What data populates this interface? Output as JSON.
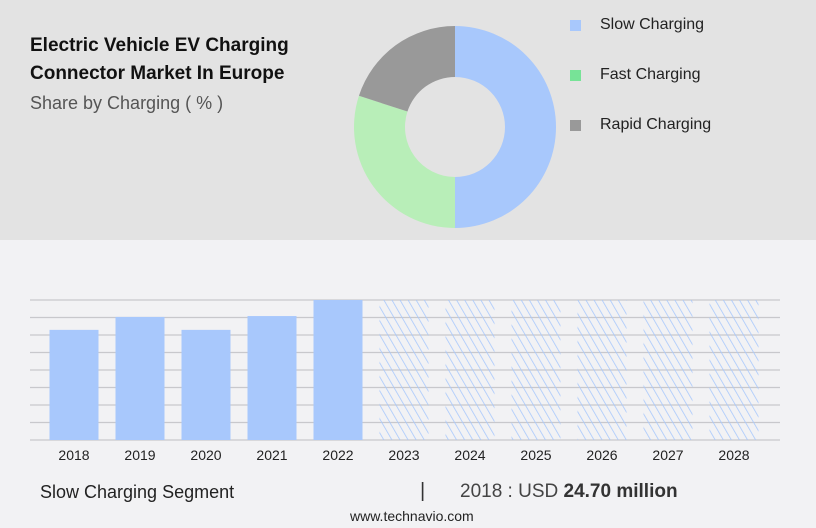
{
  "title": "Electric Vehicle EV Charging Connector Market In Europe",
  "subtitle": "Share by Charging ( % )",
  "chart_data": [
    {
      "type": "pie",
      "style": "donut",
      "categories": [
        "Slow Charging",
        "Fast Charging",
        "Rapid Charging"
      ],
      "values": [
        50,
        30,
        20
      ],
      "colors": [
        "#a8c8fc",
        "#b8eeb8",
        "#999999"
      ],
      "legend_colors": [
        "#a8c8fc",
        "#77e397",
        "#999999"
      ],
      "legend": "right"
    },
    {
      "type": "bar",
      "categories": [
        "2018",
        "2019",
        "2020",
        "2021",
        "2022",
        "2023",
        "2024",
        "2025",
        "2026",
        "2027",
        "2028"
      ],
      "values": [
        24.7,
        27.6,
        24.7,
        27.8,
        31.4,
        null,
        null,
        null,
        null,
        null,
        null
      ],
      "forecast_hatched": [
        "2023",
        "2024",
        "2025",
        "2026",
        "2027",
        "2028"
      ],
      "ylim": [
        0,
        31.4
      ],
      "grid": true,
      "color": "#a8c8fc"
    }
  ],
  "footer": {
    "segment": "Slow Charging Segment",
    "separator": "|",
    "year_label": "2018 : USD",
    "value": "24.70 million",
    "site": "www.technavio.com"
  }
}
